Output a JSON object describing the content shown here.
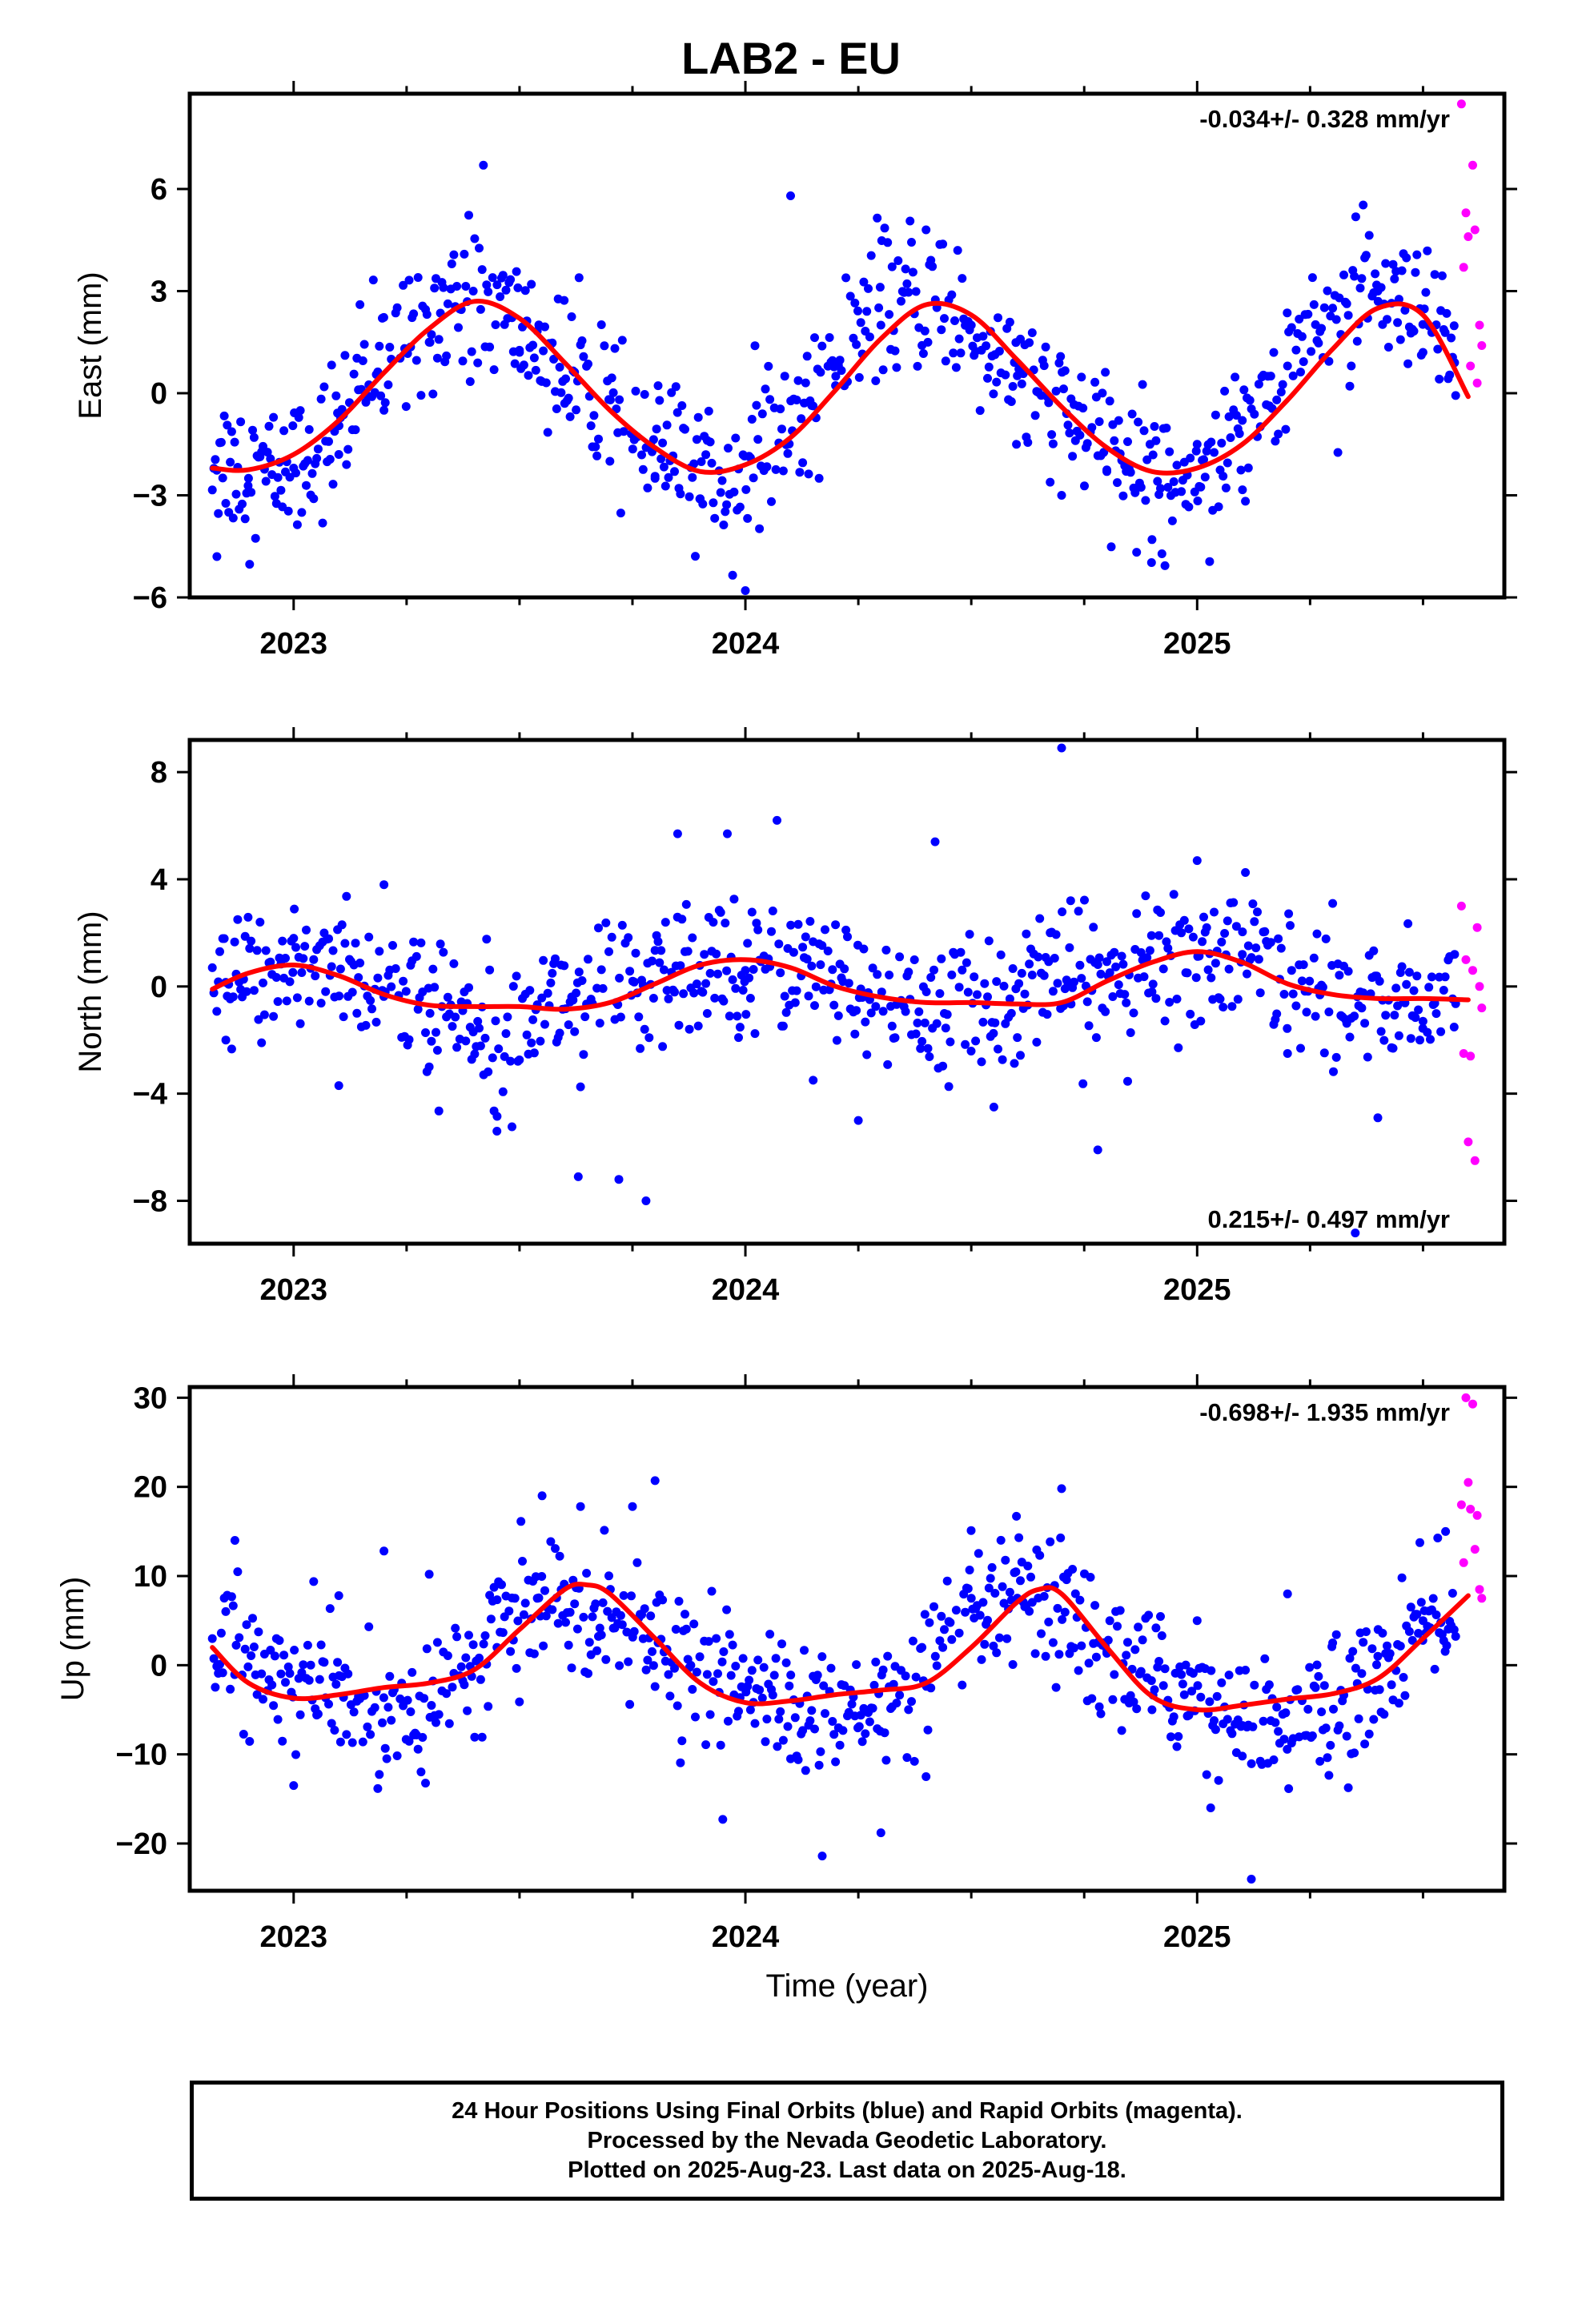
{
  "title": "LAB2 - EU",
  "chart_data": [
    {
      "type": "scatter",
      "ylabel": "East (mm)",
      "xlabel": "",
      "xlim": [
        2022.77,
        2025.68
      ],
      "ylim": [
        -6,
        8.8
      ],
      "x_ticks": [
        2023,
        2024,
        2025
      ],
      "y_ticks": [
        -6,
        -3,
        0,
        3,
        6
      ],
      "rate_label": "-0.034+/- 0.328 mm/yr",
      "rate_label_position": "top-right",
      "model": {
        "mean": 0.1,
        "annual_amp": 2.5,
        "annual_peak": 0.4,
        "semi_amp": 0.3,
        "semi_peak": 0.3,
        "trend": -0.034
      },
      "noise": 1.05,
      "series": [
        {
          "name": "Final Orbits",
          "color": "#0000ff",
          "x": [
            2022.83,
            2022.9,
            2023.0,
            2023.1,
            2023.2,
            2023.3,
            2023.35,
            2023.42,
            2023.5,
            2023.6,
            2023.7,
            2023.8,
            2023.9,
            2024.0,
            2024.1,
            2024.2,
            2024.3,
            2024.4,
            2024.5,
            2024.6,
            2024.7,
            2024.8,
            2024.9,
            2025.0,
            2025.1,
            2025.2,
            2025.3,
            2025.4,
            2025.5,
            2025.57
          ],
          "y": [
            -4.8,
            -2.5,
            -2.2,
            -1.8,
            -0.5,
            1.5,
            3.8,
            6.7,
            1.2,
            -0.3,
            -2.0,
            -2.5,
            -3.1,
            -5.8,
            5.8,
            0.5,
            2.0,
            4.8,
            2.0,
            -1.5,
            -3.0,
            -2.3,
            -4.3,
            -1.5,
            -0.8,
            0.8,
            2.5,
            3.0,
            1.2,
            0.9
          ]
        },
        {
          "name": "Rapid Orbits",
          "color": "#ff00ff",
          "x": [
            2025.585,
            2025.59,
            2025.595,
            2025.6,
            2025.605,
            2025.61,
            2025.615,
            2025.62,
            2025.625,
            2025.63
          ],
          "y": [
            8.5,
            3.7,
            5.3,
            4.6,
            0.8,
            6.7,
            4.8,
            0.3,
            2.0,
            1.4
          ]
        }
      ],
      "fit": {
        "name": "Model",
        "color": "#ff0000",
        "x": [
          2022.82,
          2022.9,
          2023.0,
          2023.1,
          2023.2,
          2023.3,
          2023.4,
          2023.5,
          2023.6,
          2023.7,
          2023.8,
          2023.9,
          2024.0,
          2024.1,
          2024.2,
          2024.3,
          2024.4,
          2024.5,
          2024.6,
          2024.7,
          2024.8,
          2024.9,
          2025.0,
          2025.1,
          2025.2,
          2025.3,
          2025.4,
          2025.5,
          2025.6
        ],
        "y": [
          -2.2,
          -2.25,
          -1.8,
          -0.8,
          0.6,
          1.9,
          2.7,
          2.2,
          0.9,
          -0.5,
          -1.6,
          -2.3,
          -2.1,
          -1.3,
          0.1,
          1.6,
          2.6,
          2.3,
          1.0,
          -0.4,
          -1.6,
          -2.3,
          -2.2,
          -1.5,
          -0.2,
          1.3,
          2.5,
          2.3,
          -0.1
        ]
      }
    },
    {
      "type": "scatter",
      "ylabel": "North (mm)",
      "xlabel": "",
      "xlim": [
        2022.77,
        2025.68
      ],
      "ylim": [
        -9.6,
        9.2
      ],
      "x_ticks": [
        2023,
        2024,
        2025
      ],
      "y_ticks": [
        -8,
        -4,
        0,
        4,
        8
      ],
      "rate_label": "0.215+/- 0.497 mm/yr",
      "rate_label_position": "bottom-right",
      "model": {
        "mean": 0.0,
        "annual_amp": 0.9,
        "annual_peak": 0.98,
        "semi_amp": 0.35,
        "semi_peak": 0.1,
        "trend": 0.215
      },
      "noise": 1.25,
      "series": [
        {
          "name": "Final Orbits",
          "color": "#0000ff",
          "x": [
            2022.85,
            2023.0,
            2023.1,
            2023.2,
            2023.3,
            2023.45,
            2023.63,
            2023.72,
            2023.78,
            2023.85,
            2023.96,
            2024.0,
            2024.07,
            2024.15,
            2024.25,
            2024.42,
            2024.55,
            2024.7,
            2024.72,
            2024.78,
            2024.9,
            2025.0,
            2025.1,
            2025.2,
            2025.3,
            2025.35,
            2025.4,
            2025.5,
            2025.57
          ],
          "y": [
            -2.0,
            1.8,
            -3.7,
            3.8,
            -3.0,
            -5.4,
            -7.1,
            -7.2,
            -8.0,
            5.7,
            5.7,
            0.6,
            6.2,
            -3.5,
            -5.0,
            5.4,
            -4.5,
            8.9,
            3.2,
            -6.1,
            -0.2,
            4.7,
            1.2,
            -2.5,
            3.1,
            -9.2,
            -4.9,
            -1.3,
            1.2
          ]
        },
        {
          "name": "Rapid Orbits",
          "color": "#ff00ff",
          "x": [
            2025.585,
            2025.59,
            2025.595,
            2025.6,
            2025.605,
            2025.61,
            2025.615,
            2025.62,
            2025.625,
            2025.63
          ],
          "y": [
            3.0,
            -2.5,
            1.0,
            -5.8,
            -2.6,
            0.6,
            -6.5,
            2.2,
            0.0,
            -0.8
          ]
        }
      ],
      "fit": {
        "name": "Model",
        "color": "#ff0000",
        "x": [
          2022.82,
          2022.9,
          2023.0,
          2023.1,
          2023.2,
          2023.3,
          2023.4,
          2023.5,
          2023.6,
          2023.7,
          2023.8,
          2023.9,
          2024.0,
          2024.1,
          2024.2,
          2024.3,
          2024.4,
          2024.5,
          2024.6,
          2024.7,
          2024.8,
          2024.9,
          2025.0,
          2025.1,
          2025.2,
          2025.3,
          2025.4,
          2025.5,
          2025.6
        ],
        "y": [
          -0.1,
          0.5,
          0.8,
          0.4,
          -0.3,
          -0.7,
          -0.75,
          -0.75,
          -0.85,
          -0.6,
          0.1,
          0.8,
          1.0,
          0.7,
          0.0,
          -0.4,
          -0.6,
          -0.6,
          -0.65,
          -0.6,
          0.2,
          0.9,
          1.3,
          0.9,
          0.1,
          -0.3,
          -0.45,
          -0.45,
          -0.5
        ]
      }
    },
    {
      "type": "scatter",
      "ylabel": "Up (mm)",
      "xlabel": "Time (year)",
      "xlim": [
        2022.77,
        2025.68
      ],
      "ylim": [
        -25.3,
        31.2
      ],
      "x_ticks": [
        2023,
        2024,
        2025
      ],
      "y_ticks": [
        -20,
        -10,
        0,
        10,
        20,
        30
      ],
      "rate_label": "-0.698+/- 1.935 mm/yr",
      "rate_label_position": "top-right",
      "model": {
        "mean": 0.0,
        "annual_amp": 6.0,
        "annual_peak": 0.64,
        "semi_amp": 1.5,
        "semi_peak": 0.05,
        "trend": -0.698
      },
      "noise": 3.6,
      "series": [
        {
          "name": "Final Orbits",
          "color": "#0000ff",
          "x": [
            2022.87,
            2023.0,
            2023.1,
            2023.2,
            2023.3,
            2023.45,
            2023.55,
            2023.75,
            2023.8,
            2023.95,
            2024.1,
            2024.17,
            2024.3,
            2024.4,
            2024.5,
            2024.6,
            2024.7,
            2024.8,
            2024.9,
            2025.0,
            2025.03,
            2025.1,
            2025.12,
            2025.2,
            2025.3,
            2025.4,
            2025.5,
            2025.55
          ],
          "y": [
            14.0,
            -13.5,
            7.8,
            12.8,
            10.2,
            2.0,
            19.0,
            17.8,
            20.7,
            -17.3,
            -10.5,
            -21.4,
            -18.8,
            -12.5,
            7.5,
            16.7,
            19.8,
            1.5,
            -5.0,
            5.0,
            -16.0,
            -10.2,
            -24.0,
            8.0,
            2.5,
            1.0,
            5.0,
            15.0
          ]
        },
        {
          "name": "Rapid Orbits",
          "color": "#ff00ff",
          "x": [
            2025.585,
            2025.59,
            2025.595,
            2025.6,
            2025.605,
            2025.61,
            2025.615,
            2025.62,
            2025.625,
            2025.63
          ],
          "y": [
            18.0,
            11.5,
            30.0,
            20.5,
            17.5,
            29.3,
            13.0,
            16.8,
            8.5,
            7.5
          ]
        }
      ],
      "fit": {
        "name": "Model",
        "color": "#ff0000",
        "x": [
          2022.82,
          2022.9,
          2023.0,
          2023.1,
          2023.2,
          2023.3,
          2023.4,
          2023.5,
          2023.6,
          2023.65,
          2023.7,
          2023.8,
          2023.9,
          2024.0,
          2024.1,
          2024.2,
          2024.3,
          2024.4,
          2024.5,
          2024.6,
          2024.65,
          2024.7,
          2024.8,
          2024.9,
          2025.0,
          2025.1,
          2025.2,
          2025.3,
          2025.4,
          2025.5,
          2025.6
        ],
        "y": [
          2.0,
          -2.0,
          -3.7,
          -3.3,
          -2.5,
          -2.0,
          -0.5,
          4.0,
          8.5,
          9.0,
          8.0,
          3.0,
          -2.0,
          -4.2,
          -4.0,
          -3.3,
          -2.8,
          -2.0,
          2.0,
          7.0,
          8.5,
          8.0,
          2.0,
          -3.5,
          -5.0,
          -4.5,
          -3.8,
          -3.2,
          -1.5,
          3.0,
          7.8
        ]
      }
    }
  ],
  "caption": {
    "line1": "24 Hour Positions Using Final Orbits (blue) and Rapid Orbits (magenta).",
    "line2": "Processed by the Nevada Geodetic Laboratory.",
    "line3": "Plotted on 2025-Aug-23. Last data on 2025-Aug-18."
  }
}
